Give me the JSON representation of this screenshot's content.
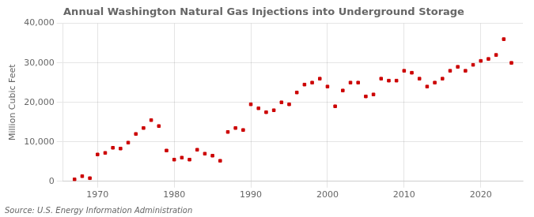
{
  "chart_data": {
    "type": "scatter",
    "title": "Annual Washington Natural Gas Injections into Underground Storage",
    "ylabel": "Million Cubic Feet",
    "annotation": "Source: U.S. Energy Information Administration",
    "x": [
      1967,
      1968,
      1969,
      1970,
      1971,
      1972,
      1973,
      1974,
      1975,
      1976,
      1977,
      1978,
      1979,
      1980,
      1981,
      1982,
      1983,
      1984,
      1985,
      1986,
      1987,
      1988,
      1989,
      1990,
      1991,
      1992,
      1993,
      1994,
      1995,
      1996,
      1997,
      1998,
      1999,
      2000,
      2001,
      2002,
      2003,
      2004,
      2005,
      2006,
      2007,
      2008,
      2009,
      2010,
      2011,
      2012,
      2013,
      2014,
      2015,
      2016,
      2017,
      2018,
      2019,
      2020,
      2021,
      2022,
      2023,
      2024
    ],
    "values": [
      500,
      1300,
      800,
      6800,
      7200,
      8500,
      8300,
      9800,
      12000,
      13500,
      15500,
      14000,
      7800,
      5500,
      6000,
      5500,
      8000,
      7000,
      6500,
      5200,
      12500,
      13500,
      13000,
      19500,
      18500,
      17500,
      18000,
      20000,
      19500,
      22500,
      24500,
      25000,
      26000,
      24000,
      19000,
      23000,
      25000,
      25000,
      21500,
      22000,
      26000,
      25500,
      25500,
      28000,
      27500,
      26000,
      24000,
      25000,
      26000,
      28000,
      29000,
      28000,
      29500,
      30500,
      31000,
      32000,
      36000,
      30000
    ],
    "color": "#cc0000",
    "marker": "square",
    "xlim": [
      1965.5,
      2025.5
    ],
    "ylim": [
      0,
      40000
    ],
    "xticks": [
      1970,
      1980,
      1990,
      2000,
      2010,
      2020
    ],
    "yticks": [
      0,
      {
        "value": 10000,
        "label": "10,000"
      },
      {
        "value": 20000,
        "label": "20,000"
      },
      {
        "value": 30000,
        "label": "30,000"
      },
      {
        "value": 40000,
        "label": "40,000"
      }
    ],
    "grid": true
  }
}
